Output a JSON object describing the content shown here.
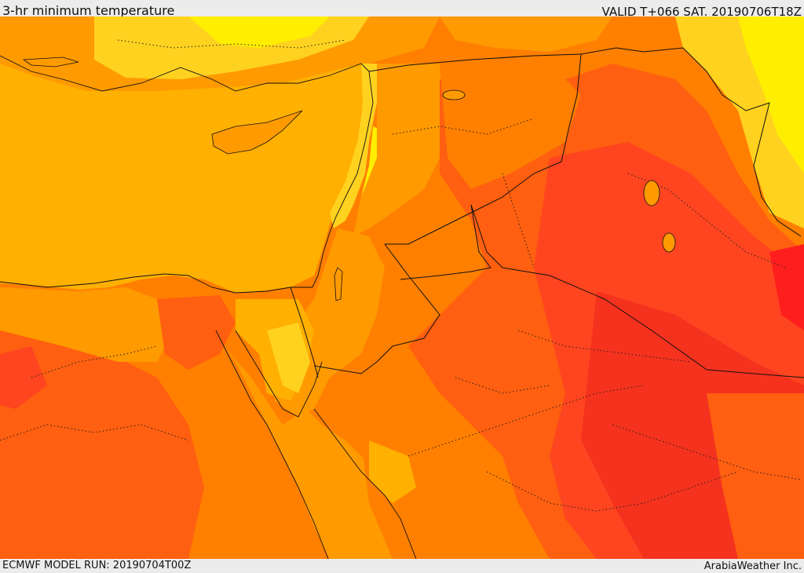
{
  "header": {
    "title": "3-hr minimum temperature",
    "valid": "VALID T+066 SAT. 20190706T18Z"
  },
  "footer": {
    "model_run": "ECMWF MODEL RUN: 20190704T00Z",
    "credit": "ArabiaWeather Inc."
  },
  "colors": {
    "sea": "#ffb000",
    "cool_land": "#ffd21f",
    "pale_yellow": "#ffee00",
    "light_orange": "#ff9a00",
    "orange": "#ff7f00",
    "dark_orange": "#ff5f10",
    "red_orange": "#ff4520",
    "red": "#f5321e",
    "border": "#111111"
  }
}
